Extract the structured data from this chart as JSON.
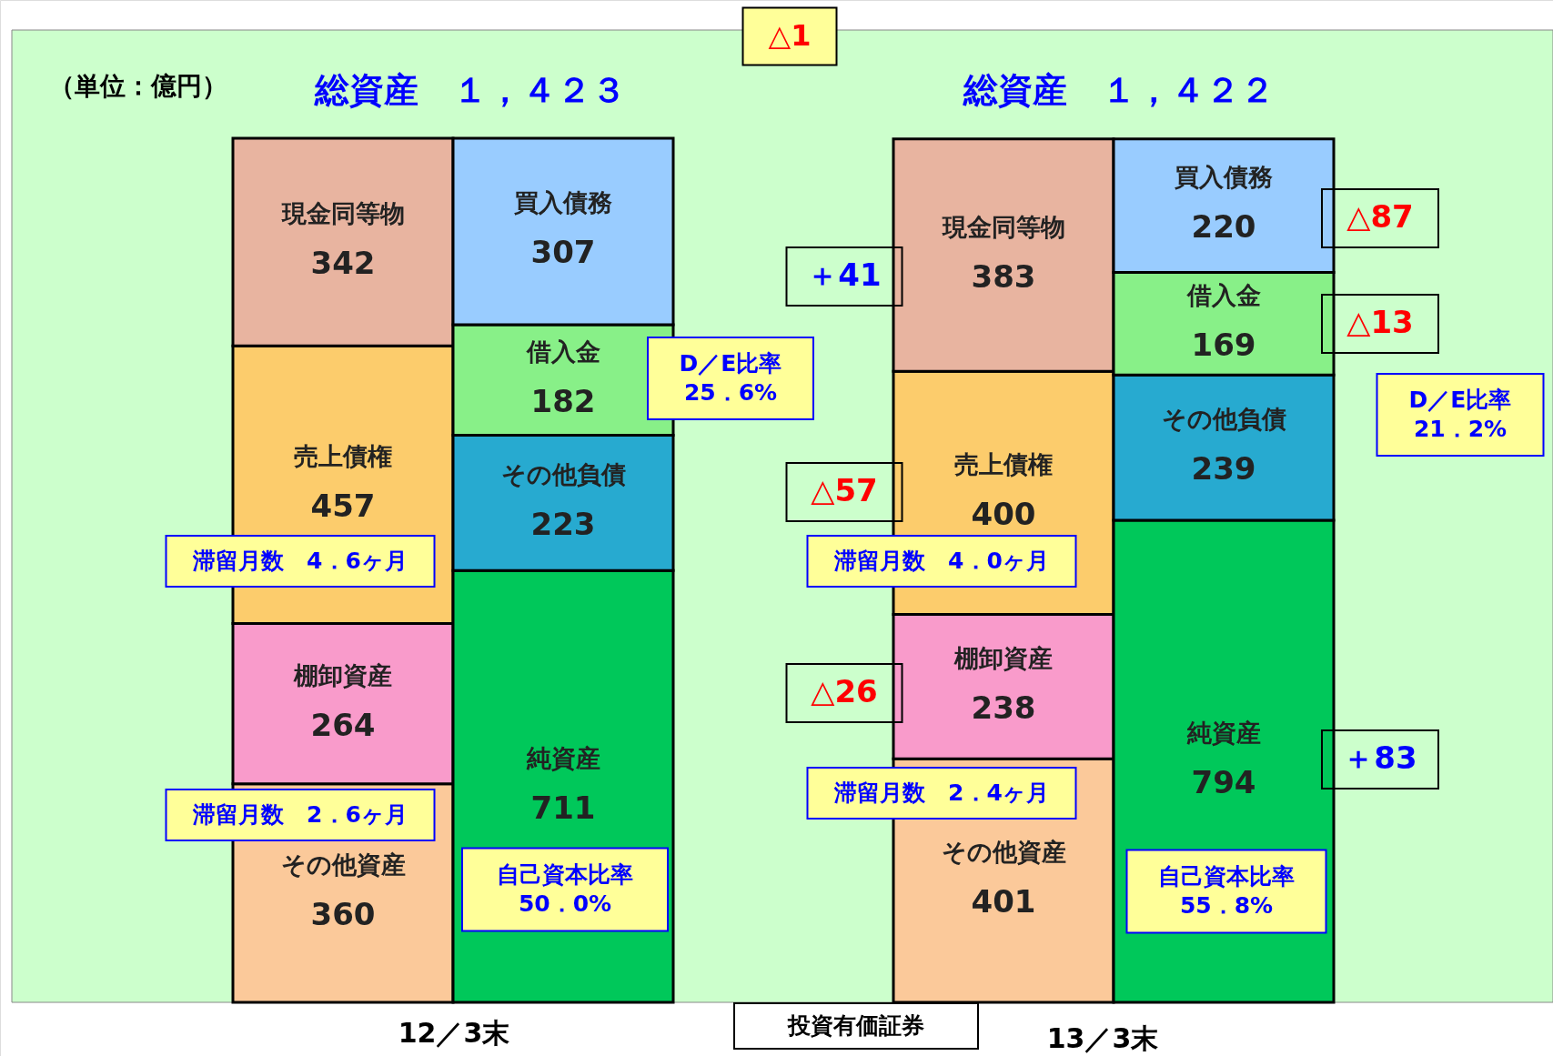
{
  "chart_data": {
    "type": "bar",
    "stacked": true,
    "data_labels": true,
    "categories": [
      null,
      null,
      null,
      null
    ],
    "series": [
      {
        "name": "その他資産",
        "color": "#fbc99a",
        "values": [
          360,
          null,
          401,
          null
        ]
      },
      {
        "name": "棚卸資産",
        "color": "#f99bcb",
        "values": [
          264,
          null,
          238,
          null
        ]
      },
      {
        "name": "売上債権",
        "color": "#fccc6c",
        "values": [
          457,
          null,
          400,
          null
        ]
      },
      {
        "name": "現金同等物",
        "color": "#e8b4a0",
        "values": [
          342,
          null,
          383,
          null
        ]
      },
      {
        "name": "純資産",
        "color": "#00c85a",
        "values": [
          null,
          711,
          null,
          794
        ]
      },
      {
        "name": "その他負債",
        "color": "#27aad0",
        "values": [
          null,
          223,
          null,
          239
        ]
      },
      {
        "name": "借入金",
        "color": "#88f088",
        "values": [
          null,
          182,
          null,
          169
        ]
      },
      {
        "name": "買入債務",
        "color": "#99ccff",
        "values": [
          null,
          307,
          null,
          220
        ]
      }
    ],
    "annotations": [
      "（単位：億円）",
      "総資産　１，４２３",
      "△1",
      "総資産　１，４２２",
      "D／E比率\n25．6%",
      "滞留月数　4．6ヶ月",
      "滞留月数　2．6ヶ月",
      "自己資本比率\n50．0%",
      "＋41",
      "△57",
      "△26",
      "滞留月数　4．0ヶ月",
      "滞留月数　2．4ヶ月",
      "△87",
      "△13",
      "＋83",
      "D／E比率\n21．2%",
      "自己資本比率\n55．8%",
      "投資有価証券",
      "12／3末",
      "13／3末"
    ]
  }
}
